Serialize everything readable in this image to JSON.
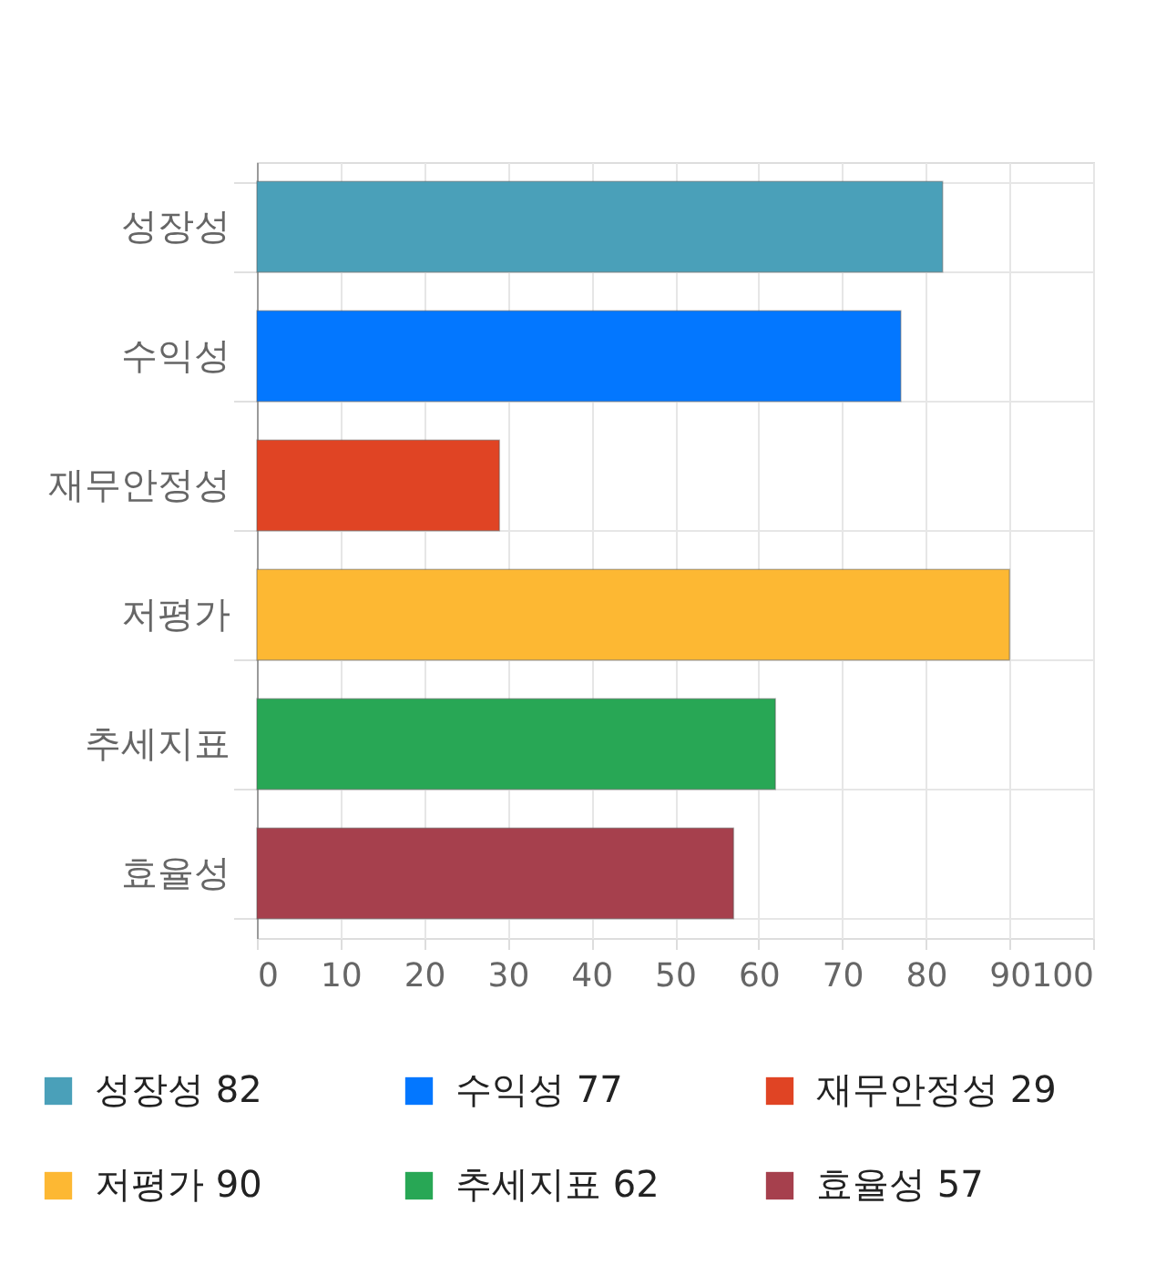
{
  "chart_data": {
    "type": "bar",
    "orientation": "horizontal",
    "categories": [
      "성장성",
      "수익성",
      "재무안정성",
      "저평가",
      "추세지표",
      "효율성"
    ],
    "series": [
      {
        "name": "성장성 82",
        "color": "#4aa0b9",
        "values": [
          82,
          null,
          null,
          null,
          null,
          null
        ]
      },
      {
        "name": "수익성 77",
        "color": "#0377ff",
        "values": [
          null,
          77,
          null,
          null,
          null,
          null
        ]
      },
      {
        "name": "재무안정성 29",
        "color": "#e04424",
        "values": [
          null,
          null,
          29,
          null,
          null,
          null
        ]
      },
      {
        "name": "저평가 90",
        "color": "#fdb833",
        "values": [
          null,
          null,
          null,
          90,
          null,
          null
        ]
      },
      {
        "name": "추세지표 62",
        "color": "#28a755",
        "values": [
          null,
          null,
          null,
          null,
          62,
          null
        ]
      },
      {
        "name": "효율성 57",
        "color": "#a6404d",
        "values": [
          null,
          null,
          null,
          null,
          null,
          57
        ]
      }
    ],
    "xlim": [
      0,
      100
    ],
    "xticks": [
      0,
      10,
      20,
      30,
      40,
      50,
      60,
      70,
      80,
      90,
      100
    ],
    "grid": true,
    "legend": "bottom"
  }
}
